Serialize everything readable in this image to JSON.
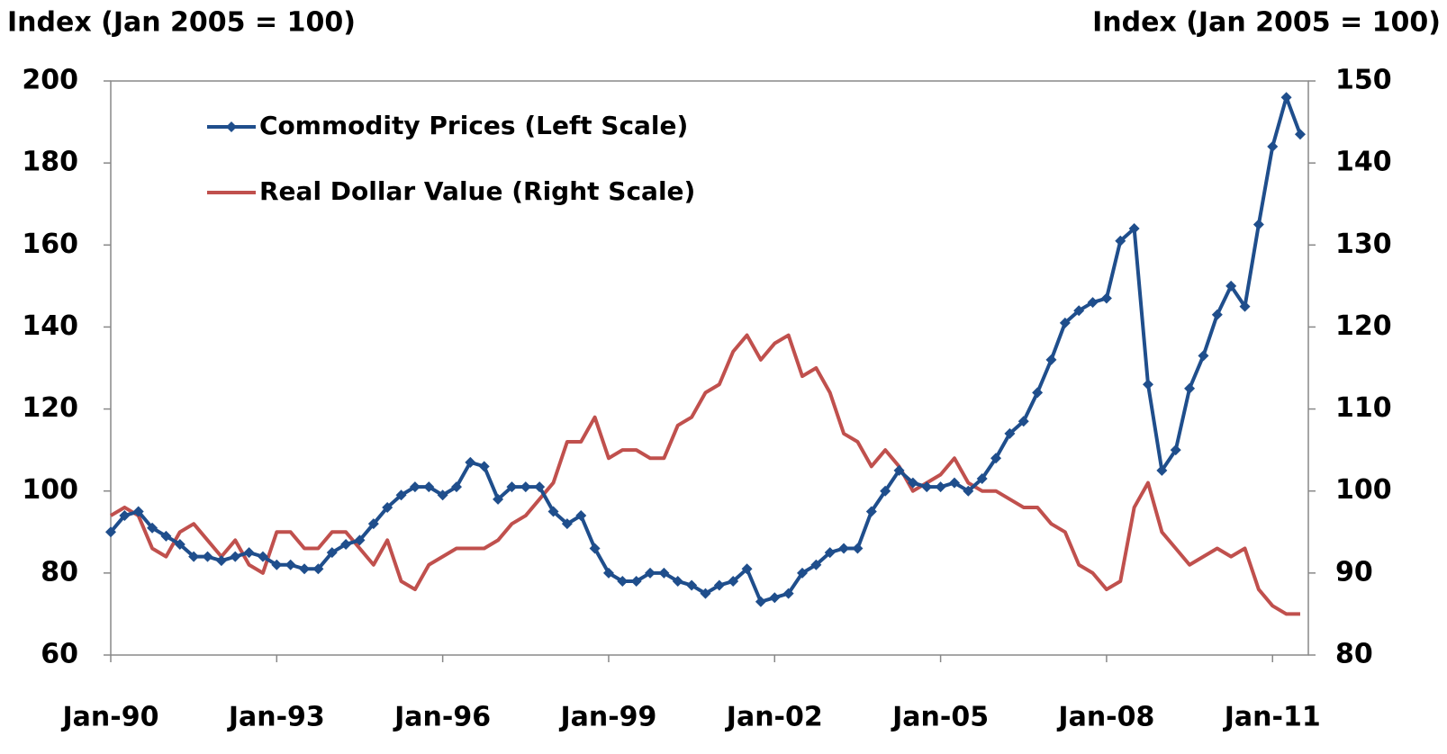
{
  "chart_data": {
    "type": "line",
    "ylabel": "Index (Jan 2005 = 100)",
    "y2label": "Index (Jan 2005 = 100)",
    "categories": [
      "Jan-90",
      null,
      null,
      null,
      null,
      null,
      null,
      null,
      null,
      null,
      null,
      null,
      "Jan-93",
      null,
      null,
      null,
      null,
      null,
      null,
      null,
      null,
      null,
      null,
      null,
      "Jan-96",
      null,
      null,
      null,
      null,
      null,
      null,
      null,
      null,
      null,
      null,
      null,
      "Jan-99",
      null,
      null,
      null,
      null,
      null,
      null,
      null,
      null,
      null,
      null,
      null,
      "Jan-02",
      null,
      null,
      null,
      null,
      null,
      null,
      null,
      null,
      null,
      null,
      null,
      "Jan-05",
      null,
      null,
      null,
      null,
      null,
      null,
      null,
      null,
      null,
      null,
      null,
      "Jan-08",
      null,
      null,
      null,
      null,
      null,
      null,
      null,
      null,
      null,
      null,
      null,
      "Jan-11",
      null,
      null
    ],
    "series": [
      {
        "name": "Commodity Prices (Left Scale)",
        "color": "#1f4e8c",
        "marker": "diamond",
        "values": [
          90,
          94,
          95,
          91,
          89,
          87,
          84,
          84,
          83,
          84,
          85,
          84,
          82,
          82,
          81,
          81,
          85,
          87,
          88,
          92,
          96,
          99,
          101,
          101,
          99,
          101,
          107,
          106,
          98,
          101,
          101,
          101,
          95,
          92,
          94,
          86,
          80,
          78,
          78,
          80,
          80,
          78,
          77,
          75,
          77,
          78,
          81,
          73,
          74,
          75,
          80,
          82,
          85,
          86,
          86,
          95,
          100,
          105,
          102,
          101,
          101,
          102,
          100,
          103,
          108,
          114,
          117,
          124,
          132,
          141,
          144,
          146,
          147,
          161,
          164,
          126,
          105,
          110,
          125,
          133,
          143,
          150,
          145,
          165,
          184,
          196,
          187
        ]
      },
      {
        "name": "Real Dollar Value (Right Scale)",
        "color": "#c0504d",
        "axis": "y2",
        "values": [
          97,
          98,
          97,
          93,
          92,
          95,
          96,
          94,
          92,
          94,
          91,
          90,
          95,
          95,
          93,
          93,
          95,
          95,
          93,
          91,
          94,
          89,
          88,
          91,
          92,
          93,
          93,
          93,
          94,
          96,
          97,
          99,
          101,
          106,
          106,
          109,
          104,
          105,
          105,
          104,
          104,
          108,
          109,
          112,
          113,
          117,
          119,
          116,
          118,
          119,
          114,
          115,
          112,
          107,
          106,
          103,
          105,
          103,
          100,
          101,
          102,
          104,
          101,
          100,
          100,
          99,
          98,
          98,
          96,
          95,
          91,
          90,
          88,
          89,
          98,
          101,
          95,
          93,
          91,
          92,
          93,
          92,
          93,
          88,
          86,
          85,
          85
        ]
      }
    ],
    "ylim": [
      60,
      200
    ],
    "yticks": [
      60,
      80,
      100,
      120,
      140,
      160,
      180,
      200
    ],
    "y2lim": [
      80,
      150
    ],
    "y2ticks": [
      80,
      90,
      100,
      110,
      120,
      130,
      140,
      150
    ],
    "legend": "upper left"
  }
}
